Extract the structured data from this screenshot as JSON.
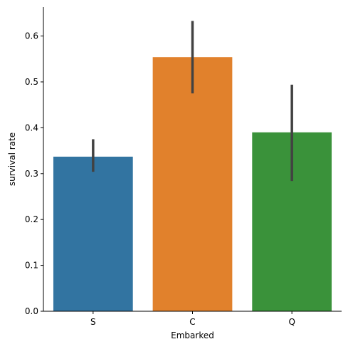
{
  "chart_data": {
    "type": "bar",
    "categories": [
      "S",
      "C",
      "Q"
    ],
    "values": [
      0.337,
      0.554,
      0.39
    ],
    "error_bars": [
      {
        "low": 0.304,
        "high": 0.375
      },
      {
        "low": 0.475,
        "high": 0.633
      },
      {
        "low": 0.284,
        "high": 0.494
      }
    ],
    "colors": [
      "#3274a1",
      "#e1812c",
      "#3a923a"
    ],
    "errorbar_color": "#424242",
    "xlabel": "Embarked",
    "ylabel": "survival rate",
    "ylim": [
      0,
      0.663
    ],
    "yticks": [
      0.0,
      0.1,
      0.2,
      0.3,
      0.4,
      0.5,
      0.6
    ],
    "ytick_labels": [
      "0.0",
      "0.1",
      "0.2",
      "0.3",
      "0.4",
      "0.5",
      "0.6"
    ],
    "grid": false,
    "legend": "none"
  }
}
